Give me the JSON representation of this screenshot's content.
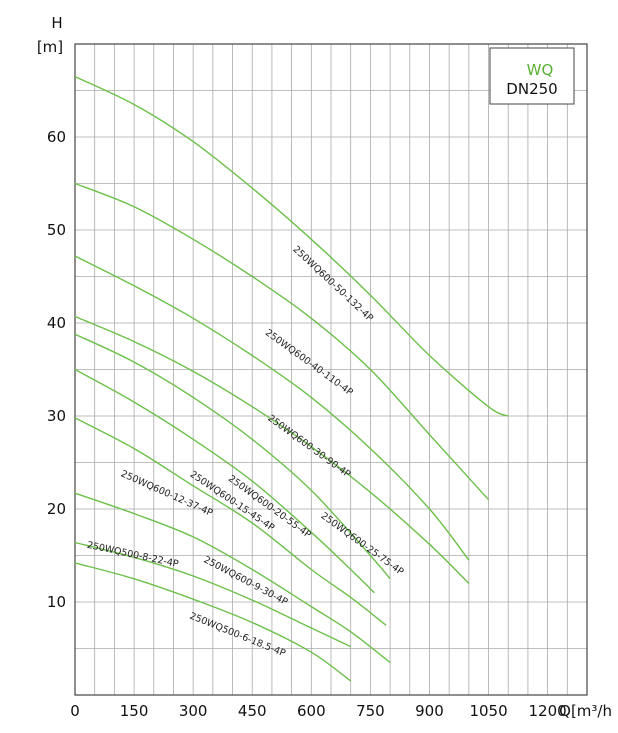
{
  "chart_data": {
    "type": "line",
    "legend": {
      "line1": "WQ",
      "line2": "DN250",
      "placement": "top-right"
    },
    "y_axis": {
      "name": "H",
      "unit": "[m]",
      "ticks": [
        "10",
        "20",
        "30",
        "40",
        "50",
        "60"
      ]
    },
    "x_axis": {
      "unit": "Q[m³/h",
      "ticks": [
        "0",
        "150",
        "300",
        "450",
        "600",
        "750",
        "900",
        "1050",
        "1200"
      ]
    },
    "xlim": [
      0,
      1300
    ],
    "ylim": [
      0,
      70
    ],
    "grid": true,
    "colors": {
      "curve": "#6cc04a",
      "legend_accent": "#5ab034",
      "grid": "#aaaaaa"
    },
    "series": [
      {
        "name": "250WQ600-50-132-4P",
        "x": [
          0,
          150,
          300,
          450,
          600,
          750,
          900,
          1050,
          1100
        ],
        "y": [
          66.5,
          63.5,
          59.5,
          54.5,
          49,
          43,
          36.5,
          31,
          30
        ]
      },
      {
        "name": "250WQ600-40-110-4P",
        "x": [
          0,
          150,
          300,
          450,
          600,
          750,
          900,
          1050
        ],
        "y": [
          55,
          52.5,
          49,
          45,
          40.5,
          35,
          28,
          21
        ]
      },
      {
        "name": "250WQ600-30-90-4P",
        "x": [
          0,
          150,
          300,
          450,
          600,
          750,
          900,
          1000
        ],
        "y": [
          47.2,
          44,
          40.5,
          36.5,
          32,
          26.5,
          20,
          14.5
        ]
      },
      {
        "name": "250WQ600-25-75-4P",
        "x": [
          0,
          150,
          300,
          450,
          600,
          750,
          900,
          1000
        ],
        "y": [
          40.7,
          38,
          34.8,
          31,
          26.7,
          21.8,
          16.2,
          12
        ]
      },
      {
        "name": "250WQ600-20-55-4P",
        "x": [
          0,
          150,
          300,
          450,
          600,
          750,
          800
        ],
        "y": [
          38.8,
          35.8,
          32,
          27.5,
          22,
          15,
          12.5
        ]
      },
      {
        "name": "250WQ600-15-45-4P",
        "x": [
          0,
          150,
          300,
          450,
          600,
          700,
          760
        ],
        "y": [
          35,
          31.5,
          27.5,
          23,
          17.5,
          13.5,
          11
        ]
      },
      {
        "name": "250WQ600-12-37-4P",
        "x": [
          0,
          150,
          300,
          450,
          600,
          700,
          790
        ],
        "y": [
          29.8,
          26.5,
          22.5,
          18.5,
          13.5,
          10.5,
          7.5
        ]
      },
      {
        "name": "250WQ600-9-30-4P",
        "x": [
          0,
          150,
          300,
          450,
          600,
          700,
          800
        ],
        "y": [
          21.7,
          19.5,
          17,
          13.5,
          9.5,
          6.8,
          3.5
        ]
      },
      {
        "name": "250WQ500-8-22-4P",
        "x": [
          0,
          150,
          300,
          450,
          600,
          700
        ],
        "y": [
          16.4,
          14.8,
          12.8,
          10.2,
          7.2,
          5.2
        ]
      },
      {
        "name": "250WQ500-6-18.5-4P",
        "x": [
          0,
          150,
          300,
          450,
          600,
          700
        ],
        "y": [
          14.2,
          12.5,
          10.3,
          7.8,
          4.6,
          1.5
        ]
      }
    ],
    "labels": [
      {
        "text": "250WQ600-50-132-4P",
        "x": 650,
        "y": 44,
        "angle": 43
      },
      {
        "text": "250WQ600-40-110-4P",
        "x": 590,
        "y": 35.5,
        "angle": 36
      },
      {
        "text": "250WQ600-30-90-4P",
        "x": 590,
        "y": 26.5,
        "angle": 36
      },
      {
        "text": "250WQ600-25-75-4P",
        "x": 725,
        "y": 16,
        "angle": 36
      },
      {
        "text": "250WQ600-20-55-4P",
        "x": 490,
        "y": 20,
        "angle": 36
      },
      {
        "text": "250WQ600-15-45-4P",
        "x": 395,
        "y": 20.6,
        "angle": 34
      },
      {
        "text": "250WQ600-12-37-4P",
        "x": 230,
        "y": 21.4,
        "angle": 24
      },
      {
        "text": "250WQ600-9-30-4P",
        "x": 430,
        "y": 12,
        "angle": 28
      },
      {
        "text": "250WQ500-8-22-4P",
        "x": 145,
        "y": 14.8,
        "angle": 12
      },
      {
        "text": "250WQ500-6-18.5-4P",
        "x": 410,
        "y": 6.2,
        "angle": 22
      }
    ]
  }
}
